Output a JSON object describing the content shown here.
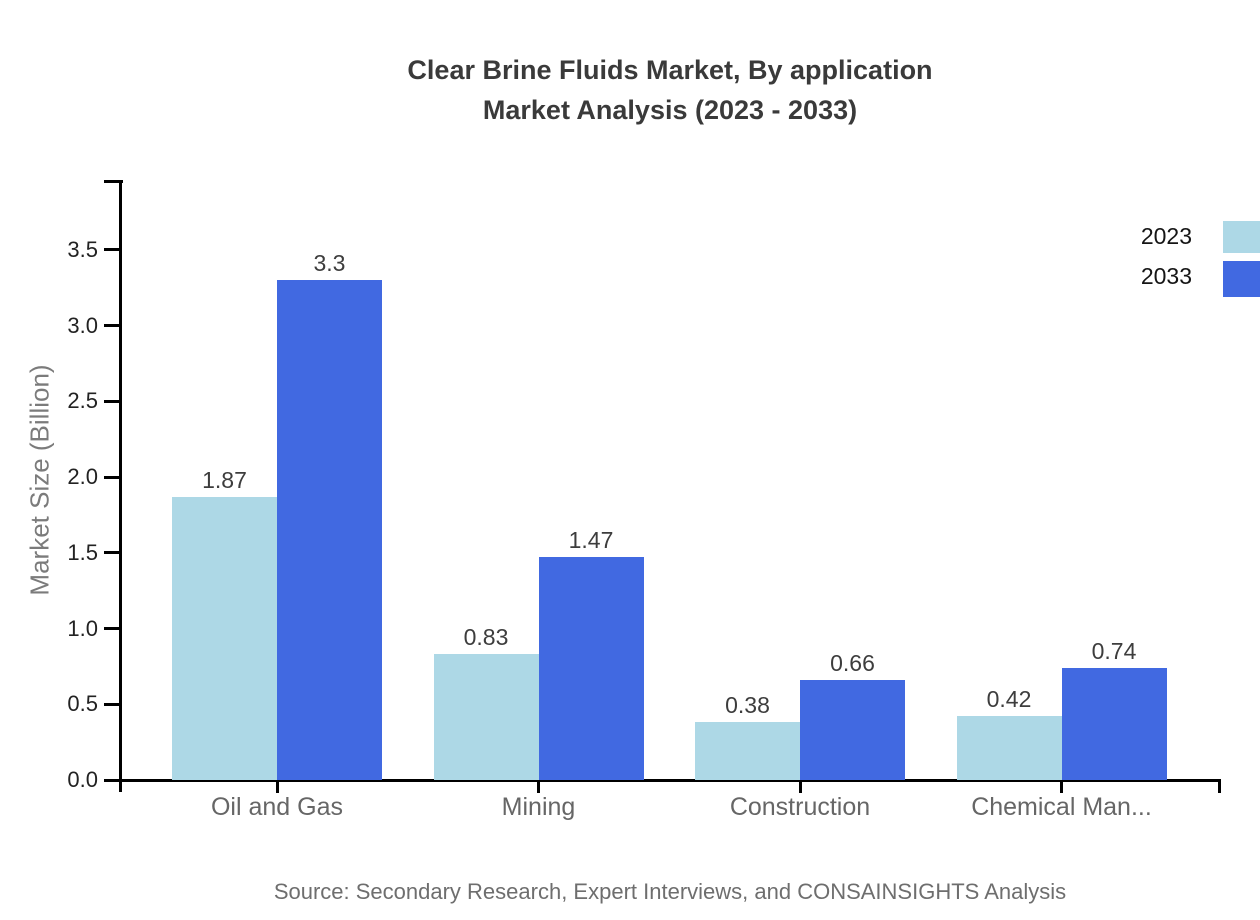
{
  "title": {
    "line1": "Clear Brine Fluids Market, By application",
    "line2": "Market Analysis (2023 - 2033)"
  },
  "y_axis": {
    "label": "Market Size (Billion)",
    "tick_labels": [
      "0.0",
      "0.5",
      "1.0",
      "1.5",
      "2.0",
      "2.5",
      "3.0",
      "3.5"
    ]
  },
  "legend": {
    "items": [
      {
        "label": "2023",
        "color": "#ADD8E6"
      },
      {
        "label": "2033",
        "color": "#4169E1"
      }
    ]
  },
  "source": "Source: Secondary Research, Expert Interviews, and CONSAINSIGHTS Analysis",
  "chart_data": {
    "type": "bar",
    "title": "Clear Brine Fluids Market, By application Market Analysis (2023 - 2033)",
    "xlabel": "",
    "ylabel": "Market Size (Billion)",
    "categories": [
      "Oil and Gas",
      "Mining",
      "Construction",
      "Chemical Man..."
    ],
    "series": [
      {
        "name": "2023",
        "color": "#ADD8E6",
        "values": [
          1.87,
          0.83,
          0.38,
          0.42
        ],
        "labels": [
          "1.87",
          "0.83",
          "0.38",
          "0.42"
        ]
      },
      {
        "name": "2033",
        "color": "#4169E1",
        "values": [
          3.3,
          1.47,
          0.66,
          0.74
        ],
        "labels": [
          "3.3",
          "1.47",
          "0.66",
          "0.74"
        ]
      }
    ],
    "yticks": [
      0.0,
      0.5,
      1.0,
      1.5,
      2.0,
      2.5,
      3.0,
      3.5
    ],
    "ylim": [
      0,
      3.96
    ],
    "grid": false,
    "legend_position": "top-right",
    "bar_value_labels": true
  }
}
